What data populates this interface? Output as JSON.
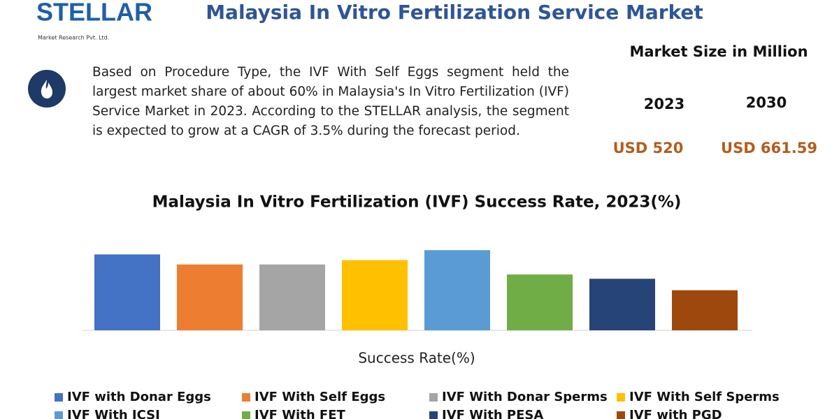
{
  "header": {
    "brand": "STELLAR",
    "brand_sub": "Market Research Pvt. Ltd.",
    "title": "Malaysia In Vitro Fertilization Service Market"
  },
  "summary": "Based on Procedure Type, the IVF With Self Eggs segment held the largest market share of about 60% in Malaysia's In Vitro Fertilization (IVF) Service Market in 2023. According to the STELLAR analysis, the segment is expected to grow at a CAGR of 3.5% during the forecast period.",
  "market": {
    "heading": "Market Size in Million",
    "years": [
      "2023",
      "2030"
    ],
    "values": [
      "USD 520",
      "USD 661.59"
    ]
  },
  "chart_data": {
    "type": "bar",
    "title": "Malaysia In Vitro Fertilization (IVF) Success Rate, 2023(%)",
    "x_label": "Success Rate(%)",
    "ylim": [
      0,
      60
    ],
    "series": [
      {
        "name": "IVF with Donar Eggs",
        "color": "#4472c4",
        "values": [
          53
        ]
      },
      {
        "name": "IVF With Self Eggs",
        "color": "#ed7d31",
        "values": [
          46
        ]
      },
      {
        "name": "IVF With Donar Sperms",
        "color": "#a5a5a5",
        "values": [
          46
        ]
      },
      {
        "name": "IVF With Self Sperms",
        "color": "#ffc000",
        "values": [
          49
        ]
      },
      {
        "name": "IVF With ICSI",
        "color": "#5b9bd5",
        "values": [
          56
        ]
      },
      {
        "name": "IVF With FET",
        "color": "#70ad47",
        "values": [
          39
        ]
      },
      {
        "name": "IVF With PESA",
        "color": "#264478",
        "values": [
          36
        ]
      },
      {
        "name": "IVF with PGD",
        "color": "#9e480e",
        "values": [
          28
        ]
      }
    ]
  }
}
